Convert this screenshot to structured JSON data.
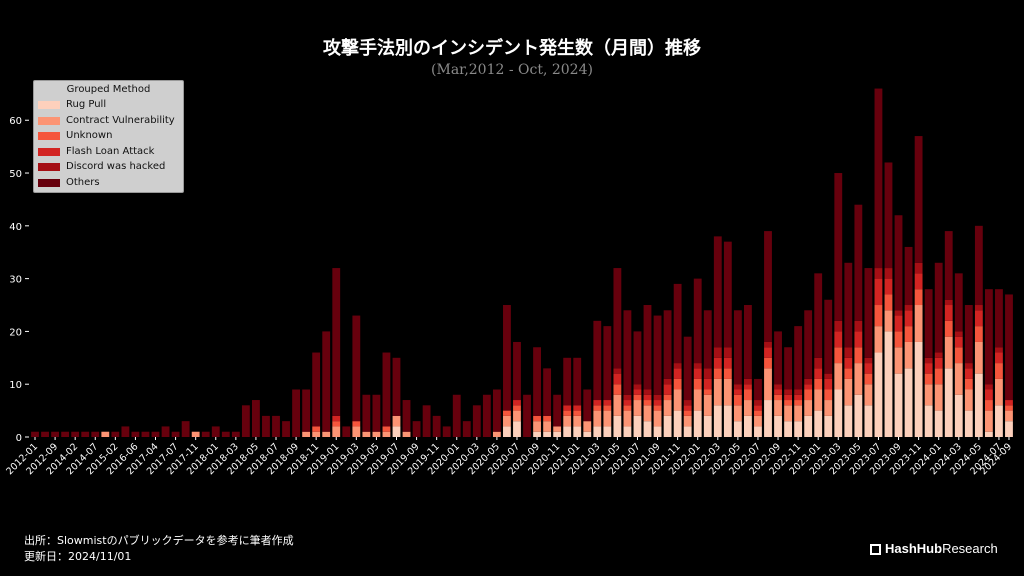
{
  "chart_data": {
    "type": "bar",
    "stacked": true,
    "title": "攻撃手法別のインシデント発生数（月間）推移",
    "subtitle": "(Mar,2012 - Oct, 2024)",
    "ylim": [
      0,
      68
    ],
    "yticks": [
      0,
      10,
      20,
      30,
      40,
      50,
      60
    ],
    "xtick_labels": [
      "2012-01",
      "2012-09",
      "2014-02",
      "2014-07",
      "2015-02",
      "2016-06",
      "2017-04",
      "2017-07",
      "2017-11",
      "2018-01",
      "2018-03",
      "2018-05",
      "2018-07",
      "2018-09",
      "2018-11",
      "2019-01",
      "2019-03",
      "2019-05",
      "2019-07",
      "2019-09",
      "2019-11",
      "2020-01",
      "2020-03",
      "2020-05",
      "2020-07",
      "2020-09",
      "2020-11",
      "2021-01",
      "2021-03",
      "2021-05",
      "2021-07",
      "2021-09",
      "2021-11",
      "2022-01",
      "2022-03",
      "2022-05",
      "2022-07",
      "2022-09",
      "2022-11",
      "2023-01",
      "2023-03",
      "2023-05",
      "2023-07",
      "2023-09",
      "2023-11",
      "2024-01",
      "2024-03",
      "2024-05",
      "2024-07",
      "2024-09"
    ],
    "legend": {
      "title": "Grouped Method",
      "placement": "top-left",
      "items": [
        {
          "name": "Rug Pull",
          "color": "#fdd0bc"
        },
        {
          "name": "Contract Vulnerability",
          "color": "#fc9474"
        },
        {
          "name": "Unknown",
          "color": "#f5553c"
        },
        {
          "name": "Flash Loan Attack",
          "color": "#d22422"
        },
        {
          "name": "Discord was hacked",
          "color": "#a50f15"
        },
        {
          "name": "Others",
          "color": "#67000d"
        }
      ]
    },
    "totals": [
      1,
      1,
      1,
      1,
      1,
      1,
      1,
      1,
      1,
      2,
      1,
      1,
      1,
      2,
      1,
      3,
      1,
      1,
      2,
      1,
      1,
      6,
      7,
      4,
      4,
      3,
      9,
      9,
      16,
      20,
      32,
      2,
      23,
      8,
      8,
      16,
      15,
      7,
      3,
      6,
      4,
      2,
      8,
      3,
      6,
      8,
      9,
      25,
      18,
      8,
      17,
      13,
      8,
      15,
      15,
      9,
      22,
      21,
      32,
      24,
      20,
      25,
      23,
      24,
      29,
      19,
      30,
      24,
      38,
      37,
      24,
      25,
      11,
      39,
      20,
      17,
      21,
      24,
      31,
      26,
      50,
      33,
      44,
      32,
      66,
      52,
      42,
      36,
      57,
      28,
      33,
      39,
      31,
      25,
      40,
      28,
      28,
      27
    ],
    "series": [
      {
        "name": "Rug Pull",
        "values": [
          0,
          0,
          0,
          0,
          0,
          0,
          0,
          0,
          0,
          0,
          0,
          0,
          0,
          0,
          0,
          0,
          0,
          0,
          0,
          0,
          0,
          0,
          0,
          0,
          0,
          0,
          0,
          0,
          0,
          0,
          0,
          0,
          0,
          0,
          0,
          0,
          2,
          0,
          0,
          0,
          0,
          0,
          0,
          0,
          0,
          0,
          0,
          2,
          3,
          0,
          1,
          1,
          1,
          2,
          2,
          1,
          2,
          2,
          4,
          2,
          4,
          3,
          2,
          4,
          5,
          2,
          5,
          4,
          6,
          6,
          3,
          4,
          2,
          7,
          4,
          3,
          3,
          4,
          5,
          4,
          9,
          6,
          8,
          6,
          16,
          20,
          12,
          13,
          18,
          6,
          5,
          13,
          8,
          5,
          12,
          1,
          6,
          3
        ]
      },
      {
        "name": "Contract Vulnerability",
        "values": [
          0,
          0,
          0,
          0,
          0,
          0,
          0,
          1,
          0,
          0,
          0,
          0,
          0,
          0,
          0,
          0,
          1,
          0,
          0,
          0,
          0,
          0,
          0,
          0,
          0,
          0,
          0,
          1,
          1,
          1,
          2,
          0,
          2,
          1,
          1,
          1,
          2,
          1,
          0,
          0,
          0,
          0,
          0,
          0,
          0,
          0,
          1,
          2,
          2,
          0,
          2,
          2,
          1,
          2,
          2,
          2,
          3,
          3,
          4,
          3,
          3,
          3,
          3,
          3,
          4,
          2,
          4,
          4,
          5,
          5,
          3,
          3,
          2,
          6,
          3,
          3,
          3,
          3,
          4,
          3,
          5,
          5,
          6,
          4,
          5,
          4,
          5,
          5,
          7,
          4,
          5,
          6,
          6,
          4,
          6,
          4,
          5,
          2
        ]
      },
      {
        "name": "Unknown",
        "values": [
          0,
          0,
          0,
          0,
          0,
          0,
          0,
          0,
          0,
          0,
          0,
          0,
          0,
          0,
          0,
          0,
          0,
          0,
          0,
          0,
          0,
          0,
          0,
          0,
          0,
          0,
          0,
          0,
          1,
          0,
          1,
          0,
          1,
          0,
          0,
          1,
          0,
          0,
          0,
          0,
          0,
          0,
          0,
          0,
          0,
          0,
          0,
          1,
          1,
          0,
          1,
          1,
          0,
          1,
          1,
          0,
          1,
          1,
          2,
          1,
          1,
          1,
          1,
          1,
          2,
          1,
          2,
          1,
          2,
          2,
          2,
          2,
          1,
          2,
          1,
          1,
          1,
          2,
          2,
          2,
          3,
          2,
          3,
          2,
          4,
          3,
          3,
          3,
          3,
          2,
          3,
          3,
          3,
          2,
          3,
          2,
          3,
          1
        ]
      },
      {
        "name": "Flash Loan Attack",
        "values": [
          0,
          0,
          0,
          0,
          0,
          0,
          0,
          0,
          0,
          0,
          0,
          0,
          0,
          0,
          0,
          0,
          0,
          0,
          0,
          0,
          0,
          0,
          0,
          0,
          0,
          0,
          0,
          0,
          0,
          0,
          1,
          0,
          0,
          0,
          0,
          0,
          0,
          0,
          0,
          0,
          0,
          0,
          0,
          0,
          0,
          0,
          0,
          0,
          1,
          0,
          0,
          0,
          0,
          1,
          1,
          0,
          1,
          1,
          2,
          1,
          1,
          1,
          1,
          2,
          2,
          1,
          2,
          2,
          2,
          2,
          1,
          1,
          1,
          2,
          1,
          1,
          1,
          1,
          2,
          2,
          3,
          2,
          3,
          2,
          5,
          3,
          3,
          3,
          3,
          2,
          2,
          3,
          2,
          2,
          3,
          2,
          2,
          1
        ]
      },
      {
        "name": "Discord was hacked",
        "values": [
          0,
          0,
          0,
          0,
          0,
          0,
          0,
          0,
          0,
          0,
          0,
          0,
          0,
          0,
          0,
          0,
          0,
          0,
          0,
          0,
          0,
          0,
          0,
          0,
          0,
          0,
          0,
          0,
          0,
          0,
          0,
          0,
          0,
          0,
          0,
          0,
          0,
          0,
          0,
          0,
          0,
          0,
          0,
          0,
          0,
          0,
          0,
          0,
          0,
          0,
          0,
          0,
          0,
          0,
          0,
          0,
          0,
          0,
          1,
          1,
          1,
          1,
          1,
          1,
          1,
          1,
          1,
          2,
          2,
          2,
          1,
          1,
          1,
          1,
          1,
          1,
          1,
          1,
          2,
          1,
          2,
          2,
          2,
          1,
          2,
          2,
          1,
          1,
          2,
          1,
          1,
          1,
          1,
          1,
          1,
          1,
          1,
          0
        ]
      },
      {
        "name": "Others",
        "values": [
          1,
          1,
          1,
          1,
          1,
          1,
          1,
          0,
          1,
          2,
          1,
          1,
          1,
          2,
          1,
          3,
          0,
          1,
          2,
          1,
          1,
          6,
          5,
          4,
          4,
          3,
          8,
          6,
          13,
          19,
          27,
          2,
          20,
          7,
          7,
          14,
          11,
          6,
          3,
          6,
          4,
          2,
          8,
          3,
          6,
          8,
          8,
          20,
          10,
          8,
          13,
          8,
          6,
          9,
          9,
          6,
          15,
          14,
          19,
          16,
          10,
          16,
          15,
          13,
          15,
          12,
          16,
          11,
          21,
          20,
          14,
          14,
          4,
          21,
          10,
          8,
          12,
          13,
          16,
          14,
          28,
          16,
          22,
          17,
          34,
          20,
          18,
          11,
          24,
          13,
          17,
          13,
          11,
          11,
          15,
          18,
          11,
          20
        ]
      }
    ]
  },
  "footer": {
    "source": "出所：Slowmistのパブリックデータを参考に筆者作成",
    "updated": "更新日：2024/11/01",
    "brand_bold": "HashHub",
    "brand_light": "Research"
  }
}
